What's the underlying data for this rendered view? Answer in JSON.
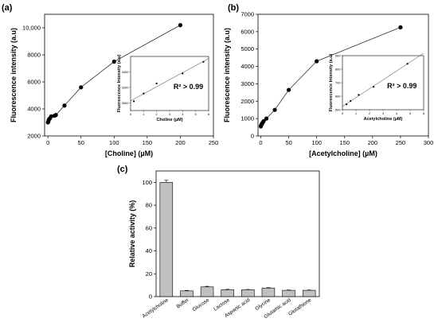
{
  "panel_labels": {
    "a": "(a)",
    "b": "(b)",
    "c": "(c)"
  },
  "chart_data": [
    {
      "id": "a",
      "type": "scatter",
      "line": true,
      "xlabel": "[Choline] (µM)",
      "ylabel": "Fluorescence intensity (a.u)",
      "xlim": [
        -5,
        250
      ],
      "ylim": [
        2000,
        11000
      ],
      "xticks": [
        0,
        50,
        100,
        150,
        200,
        250
      ],
      "yticks": [
        2000,
        4000,
        6000,
        8000,
        10000
      ],
      "ytick_labels": [
        "2000",
        "4000",
        "6000",
        "8000",
        "10,000"
      ],
      "series": [
        {
          "x": [
            0,
            0.5,
            1,
            2,
            3,
            5,
            10,
            12,
            25,
            50,
            100,
            200
          ],
          "y": [
            3000,
            3050,
            3150,
            3250,
            3300,
            3450,
            3500,
            3550,
            4250,
            5600,
            7500,
            10200
          ]
        }
      ],
      "inset": {
        "xlabel": "Choline (µM)",
        "ylabel": "Fluorescence Intensity (a.u)",
        "xlim": [
          0,
          6
        ],
        "ylim": [
          2900,
          3600
        ],
        "xticks": [
          0,
          1,
          2,
          3,
          4,
          5,
          6
        ],
        "xtick_labels": [
          "0",
          "1",
          "2",
          "3",
          "4",
          "5",
          "6"
        ],
        "yticks": [
          3000,
          3200,
          3400
        ],
        "ytick_labels": [
          "3000",
          "3200",
          "3400"
        ],
        "annotation": "R² > 0.99",
        "x": [
          0.25,
          1,
          2,
          4,
          5.6
        ],
        "y": [
          3020,
          3120,
          3250,
          3380,
          3530
        ]
      }
    },
    {
      "id": "b",
      "type": "scatter",
      "line": true,
      "xlabel": "[Acetylcholine] (µM)",
      "ylabel": "Fluorescence intensity (a.u)",
      "xlim": [
        -5,
        300
      ],
      "ylim": [
        0,
        7000
      ],
      "xticks": [
        0,
        50,
        100,
        150,
        200,
        250,
        300
      ],
      "yticks": [
        0,
        1000,
        2000,
        3000,
        4000,
        5000,
        6000,
        7000
      ],
      "ytick_labels": [
        "0",
        "1000",
        "2000",
        "3000",
        "4000",
        "5000",
        "6000",
        "7000"
      ],
      "series": [
        {
          "x": [
            0,
            0.5,
            1,
            2,
            3,
            5,
            10,
            25,
            50,
            100,
            250
          ],
          "y": [
            550,
            600,
            650,
            700,
            750,
            850,
            1000,
            1500,
            2650,
            4300,
            6250
          ]
        }
      ],
      "inset": {
        "xlabel": "Acetylcholine (µM)",
        "ylabel": "Fluorescence Intensity (a.u)",
        "xlim": [
          0,
          6
        ],
        "ylim": [
          500,
          900
        ],
        "xticks": [
          0,
          1,
          2,
          3,
          4,
          5,
          6
        ],
        "xtick_labels": [
          "0",
          "1",
          "2",
          "3",
          "4",
          "5",
          "6"
        ],
        "yticks": [
          500,
          600,
          700,
          800,
          900
        ],
        "ytick_labels": [
          "500",
          "600",
          "700",
          "800",
          "900"
        ],
        "annotation": "R² > 0.99",
        "x": [
          0.3,
          0.6,
          1.2,
          2.3,
          4.8
        ],
        "y": [
          540,
          565,
          610,
          670,
          840
        ]
      }
    },
    {
      "id": "c",
      "type": "bar",
      "ylabel": "Relative activity (%)",
      "ylim": [
        0,
        110
      ],
      "yticks": [
        0,
        20,
        40,
        60,
        80,
        100
      ],
      "categories": [
        "Acetylcholine",
        "Buffer",
        "Glucose",
        "Lactose",
        "Aspartic acid",
        "Glycine",
        "Glutamic acid",
        "Glutathione"
      ],
      "values": [
        100,
        5,
        8.5,
        6,
        6,
        7.5,
        5.5,
        5.5
      ],
      "errors": [
        1.8,
        0.4,
        0.5,
        0.4,
        0.3,
        0.4,
        0.3,
        0.3
      ],
      "bar_color": "#c0c0c0"
    }
  ]
}
